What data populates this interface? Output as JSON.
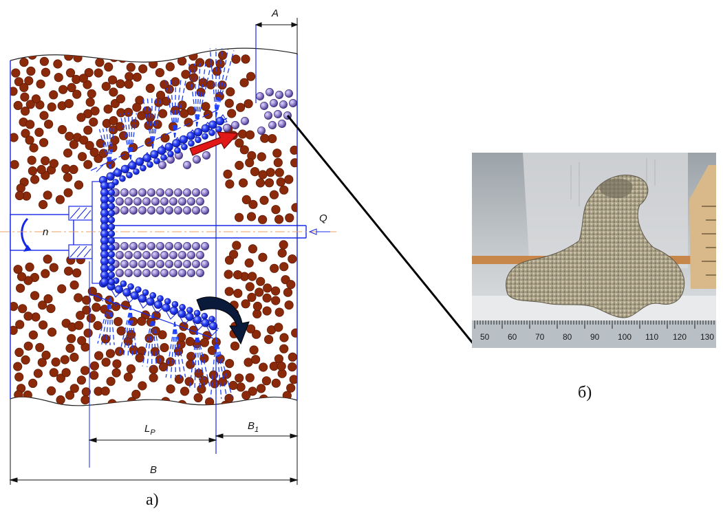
{
  "figure": {
    "dimension_labels": {
      "a": "A",
      "lp": "L",
      "lp_sub": "P",
      "b1": "B",
      "b1_sub": "1",
      "b": "B",
      "q": "Q",
      "n": "n"
    },
    "captions": {
      "left": "а)",
      "right": "б)"
    },
    "photo": {
      "ruler_ticks": [
        "50",
        "60",
        "70",
        "80",
        "90",
        "100",
        "110",
        "120",
        "130"
      ]
    },
    "colors": {
      "soil_particle": "#8b2a0a",
      "soil_particle_stroke": "#5e1a05",
      "treated_particle": "#8f7fc8",
      "treated_particle_core": "#3a2a8a",
      "tool_blue": "#1428e8",
      "jet_blue": "#1a3cff",
      "flow_arrow_red": "#e01818",
      "rotation_arrow_dark": "#0a1a3a",
      "axis_orange": "#e8a060",
      "background": "#ffffff"
    }
  }
}
